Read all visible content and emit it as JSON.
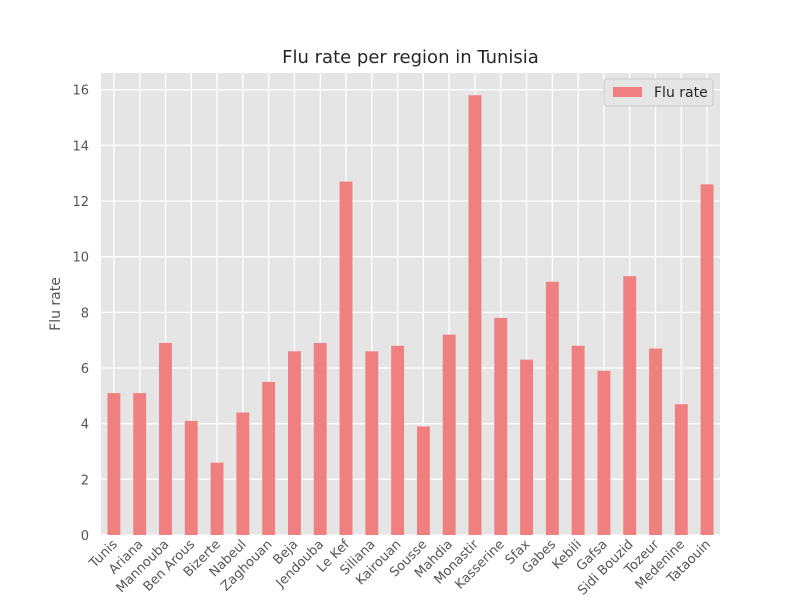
{
  "chart_data": {
    "type": "bar",
    "title": "Flu rate per region in Tunisia",
    "xlabel": "",
    "ylabel": "Flu rate",
    "ylim": [
      0,
      16.6
    ],
    "yticks": [
      0,
      2,
      4,
      6,
      8,
      10,
      12,
      14,
      16
    ],
    "grid": true,
    "legend_position": "top-right",
    "categories": [
      "Tunis",
      "Ariana",
      "Mannouba",
      "Ben Arous",
      "Bizerte",
      "Nabeul",
      "Zaghouan",
      "Beja",
      "Jendouba",
      "Le Kef",
      "Siliana",
      "Kairouan",
      "Sousse",
      "Mahdia",
      "Monastir",
      "Kasserine",
      "Sfax",
      "Gabes",
      "Kebili",
      "Gafsa",
      "Sidi Bouzid",
      "Tozeur",
      "Medenine",
      "Tataouin"
    ],
    "series": [
      {
        "name": "Flu rate",
        "color": "#f08080",
        "values": [
          5.1,
          5.1,
          6.9,
          4.1,
          2.6,
          4.4,
          5.5,
          6.6,
          6.9,
          12.7,
          6.6,
          6.8,
          3.9,
          7.2,
          15.8,
          7.8,
          6.3,
          9.1,
          6.8,
          5.9,
          9.3,
          6.7,
          4.7,
          12.6
        ]
      }
    ]
  }
}
